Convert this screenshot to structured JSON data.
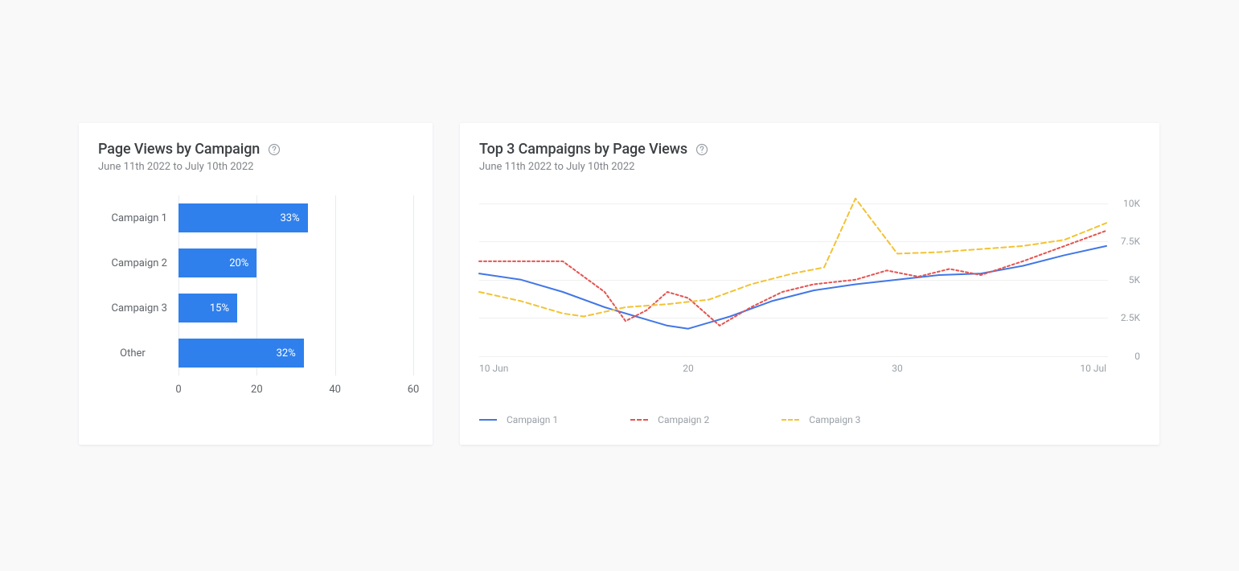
{
  "bar_card": {
    "title": "Page Views by Campaign",
    "subtitle": "June 11th 2022 to July 10th 2022",
    "type": "bar",
    "x_min": 0,
    "x_max": 60,
    "x_ticks": [
      0,
      20,
      40,
      60
    ],
    "bar_color": "#2f80ed",
    "value_color": "#ffffff",
    "grid_color": "#e8eaed",
    "background_color": "#ffffff",
    "label_fontsize": 13,
    "bars": [
      {
        "label": "Campaign 1",
        "value": 33,
        "value_label": "33%"
      },
      {
        "label": "Campaign 2",
        "value": 20,
        "value_label": "20%"
      },
      {
        "label": "Campaign 3",
        "value": 15,
        "value_label": "15%"
      },
      {
        "label": "Other",
        "value": 32,
        "value_label": "32%",
        "label_align": "center"
      }
    ]
  },
  "line_card": {
    "title": "Top 3 Campaigns by Page Views",
    "subtitle": "June 11th 2022 to July 10th 2022",
    "type": "line",
    "y_min": 0,
    "y_max": 10500,
    "y_ticks": [
      {
        "v": 0,
        "label": "0"
      },
      {
        "v": 2500,
        "label": "2.5K"
      },
      {
        "v": 5000,
        "label": "5K"
      },
      {
        "v": 7500,
        "label": "7.5K"
      },
      {
        "v": 10000,
        "label": "10K"
      }
    ],
    "x_min": 10,
    "x_max": 40,
    "x_ticks": [
      {
        "v": 10,
        "label": "10 Jun"
      },
      {
        "v": 20,
        "label": "20"
      },
      {
        "v": 30,
        "label": "30"
      },
      {
        "v": 40,
        "label": "10 Jul"
      }
    ],
    "grid_color": "#f0f0f0",
    "background_color": "#ffffff",
    "label_fontsize": 12,
    "line_width": 2,
    "series": [
      {
        "name": "Campaign 1",
        "color": "#4277e6",
        "dash": "none",
        "points": [
          [
            10,
            5400
          ],
          [
            12,
            5000
          ],
          [
            14,
            4200
          ],
          [
            16,
            3200
          ],
          [
            18,
            2400
          ],
          [
            19,
            2000
          ],
          [
            20,
            1800
          ],
          [
            22,
            2600
          ],
          [
            24,
            3600
          ],
          [
            26,
            4300
          ],
          [
            28,
            4700
          ],
          [
            30,
            5000
          ],
          [
            32,
            5300
          ],
          [
            34,
            5400
          ],
          [
            36,
            5900
          ],
          [
            38,
            6600
          ],
          [
            40,
            7200
          ]
        ]
      },
      {
        "name": "Campaign 2",
        "color": "#e55350",
        "dash": "3,3",
        "points": [
          [
            10,
            6200
          ],
          [
            12,
            6200
          ],
          [
            14,
            6200
          ],
          [
            16,
            4200
          ],
          [
            17,
            2300
          ],
          [
            18,
            3000
          ],
          [
            19,
            4200
          ],
          [
            20,
            3800
          ],
          [
            21.5,
            2000
          ],
          [
            23,
            3200
          ],
          [
            24.5,
            4200
          ],
          [
            26,
            4700
          ],
          [
            28,
            5000
          ],
          [
            29.5,
            5600
          ],
          [
            31,
            5200
          ],
          [
            32.5,
            5700
          ],
          [
            34,
            5300
          ],
          [
            36,
            6200
          ],
          [
            38,
            7200
          ],
          [
            40,
            8200
          ]
        ]
      },
      {
        "name": "Campaign 3",
        "color": "#f2c335",
        "dash": "6,4",
        "points": [
          [
            10,
            4200
          ],
          [
            12,
            3600
          ],
          [
            14,
            2800
          ],
          [
            15,
            2600
          ],
          [
            17,
            3200
          ],
          [
            19,
            3400
          ],
          [
            21,
            3700
          ],
          [
            23,
            4700
          ],
          [
            25,
            5400
          ],
          [
            26.5,
            5800
          ],
          [
            28,
            10300
          ],
          [
            30,
            6700
          ],
          [
            32,
            6800
          ],
          [
            34,
            7000
          ],
          [
            36,
            7200
          ],
          [
            38,
            7600
          ],
          [
            40,
            8700
          ]
        ]
      }
    ],
    "legend": [
      {
        "label": "Campaign 1",
        "color": "#4277e6",
        "style": "solid"
      },
      {
        "label": "Campaign 2",
        "color": "#e55350",
        "style": "dashed"
      },
      {
        "label": "Campaign 3",
        "color": "#f2c335",
        "style": "dashed"
      }
    ]
  }
}
